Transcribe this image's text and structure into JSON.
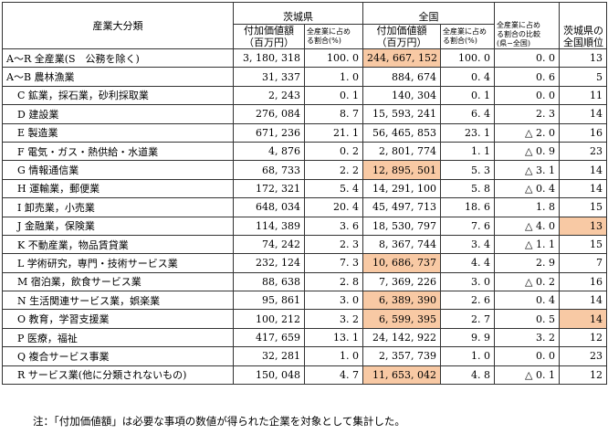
{
  "header": {
    "category": "産業大分類",
    "ibaraki": "茨城県",
    "national": "全国",
    "diff_header_line1": "全産業に占め",
    "diff_header_line2": "る割合の比較",
    "diff_header_line3": "(県−全国)",
    "rank_header_line1": "茨城県の",
    "rank_header_line2": "全国順位",
    "value_added_line1": "付加価値額",
    "value_added_line2": "（百万円）",
    "share_line1": "全産業に占め",
    "share_line2": "る割合(%)"
  },
  "rows": [
    {
      "category": "A～R 全産業(S　公務を除く)",
      "indent": false,
      "ibaraki_value": "3, 180, 318",
      "ibaraki_share": "100. 0",
      "national_value": "244, 667, 152",
      "national_share": "100. 0",
      "diff": "0. 0",
      "rank": "13",
      "hl_national": true,
      "hl_rank": false
    },
    {
      "category": "A～B 農林漁業",
      "indent": false,
      "ibaraki_value": "31, 337",
      "ibaraki_share": "1. 0",
      "national_value": "884, 674",
      "national_share": "0. 4",
      "diff": "0. 6",
      "rank": "5",
      "hl_national": false,
      "hl_rank": false
    },
    {
      "category": "C 鉱業，採石業，砂利採取業",
      "indent": true,
      "ibaraki_value": "2, 243",
      "ibaraki_share": "0. 1",
      "national_value": "140, 304",
      "national_share": "0. 1",
      "diff": "0. 0",
      "rank": "11",
      "hl_national": false,
      "hl_rank": false
    },
    {
      "category": "D 建設業",
      "indent": true,
      "ibaraki_value": "276, 084",
      "ibaraki_share": "8. 7",
      "national_value": "15, 593, 241",
      "national_share": "6. 4",
      "diff": "2. 3",
      "rank": "14",
      "hl_national": false,
      "hl_rank": false
    },
    {
      "category": "E 製造業",
      "indent": true,
      "ibaraki_value": "671, 236",
      "ibaraki_share": "21. 1",
      "national_value": "56, 465, 853",
      "national_share": "23. 1",
      "diff": "△ 2. 0",
      "rank": "16",
      "hl_national": false,
      "hl_rank": false
    },
    {
      "category": "F 電気・ガス・熱供給・水道業",
      "indent": true,
      "ibaraki_value": "4, 876",
      "ibaraki_share": "0. 2",
      "national_value": "2, 801, 774",
      "national_share": "1. 1",
      "diff": "△ 0. 9",
      "rank": "23",
      "hl_national": false,
      "hl_rank": false
    },
    {
      "category": "G 情報通信業",
      "indent": true,
      "ibaraki_value": "68, 733",
      "ibaraki_share": "2. 2",
      "national_value": "12, 895, 501",
      "national_share": "5. 3",
      "diff": "△ 3. 1",
      "rank": "14",
      "hl_national": true,
      "hl_rank": false
    },
    {
      "category": "H 運輸業，郵便業",
      "indent": true,
      "ibaraki_value": "172, 321",
      "ibaraki_share": "5. 4",
      "national_value": "14, 291, 100",
      "national_share": "5. 8",
      "diff": "△ 0. 4",
      "rank": "14",
      "hl_national": false,
      "hl_rank": false
    },
    {
      "category": "I 卸売業，小売業",
      "indent": true,
      "ibaraki_value": "648, 034",
      "ibaraki_share": "20. 4",
      "national_value": "45, 497, 713",
      "national_share": "18. 6",
      "diff": "1. 8",
      "rank": "15",
      "hl_national": false,
      "hl_rank": false
    },
    {
      "category": "J 金融業，保険業",
      "indent": true,
      "ibaraki_value": "114, 389",
      "ibaraki_share": "3. 6",
      "national_value": "18, 530, 797",
      "national_share": "7. 6",
      "diff": "△ 4. 0",
      "rank": "13",
      "hl_national": false,
      "hl_rank": true
    },
    {
      "category": "K 不動産業，物品賃貸業",
      "indent": true,
      "ibaraki_value": "74, 242",
      "ibaraki_share": "2. 3",
      "national_value": "8, 367, 744",
      "national_share": "3. 4",
      "diff": "△ 1. 1",
      "rank": "15",
      "hl_national": false,
      "hl_rank": false
    },
    {
      "category": "L 学術研究，専門・技術サービス業",
      "indent": true,
      "ibaraki_value": "232, 124",
      "ibaraki_share": "7. 3",
      "national_value": "10, 686, 737",
      "national_share": "4. 4",
      "diff": "2. 9",
      "rank": "7",
      "hl_national": true,
      "hl_rank": false
    },
    {
      "category": "M 宿泊業，飲食サービス業",
      "indent": true,
      "ibaraki_value": "88, 638",
      "ibaraki_share": "2. 8",
      "national_value": "7, 369, 226",
      "national_share": "3. 0",
      "diff": "△ 0. 2",
      "rank": "16",
      "hl_national": false,
      "hl_rank": false
    },
    {
      "category": "N 生活関連サービス業，娯楽業",
      "indent": true,
      "ibaraki_value": "95, 861",
      "ibaraki_share": "3. 0",
      "national_value": "6, 389, 390",
      "national_share": "2. 6",
      "diff": "0. 4",
      "rank": "14",
      "hl_national": true,
      "hl_rank": false
    },
    {
      "category": "O 教育，学習支援業",
      "indent": true,
      "ibaraki_value": "100, 212",
      "ibaraki_share": "3. 2",
      "national_value": "6, 599, 395",
      "national_share": "2. 7",
      "diff": "0. 5",
      "rank": "14",
      "hl_national": true,
      "hl_rank": true
    },
    {
      "category": "P 医療，福祉",
      "indent": true,
      "ibaraki_value": "417, 659",
      "ibaraki_share": "13. 1",
      "national_value": "24, 142, 922",
      "national_share": "9. 9",
      "diff": "3. 2",
      "rank": "12",
      "hl_national": false,
      "hl_rank": false
    },
    {
      "category": "Q 複合サービス事業",
      "indent": true,
      "ibaraki_value": "32, 281",
      "ibaraki_share": "1. 0",
      "national_value": "2, 357, 739",
      "national_share": "1. 0",
      "diff": "0. 0",
      "rank": "23",
      "hl_national": false,
      "hl_rank": false
    },
    {
      "category": "R サービス業(他に分類されないもの)",
      "indent": true,
      "ibaraki_value": "150, 048",
      "ibaraki_share": "4. 7",
      "national_value": "11, 653, 042",
      "national_share": "4. 8",
      "diff": "△ 0. 1",
      "rank": "12",
      "hl_national": true,
      "hl_rank": false
    }
  ],
  "colors": {
    "highlight": "#f8c9a4",
    "border": "#333333"
  },
  "note": "注：「付加価値額」は必要な事項の数値が得られた企業を対象として集計した。"
}
